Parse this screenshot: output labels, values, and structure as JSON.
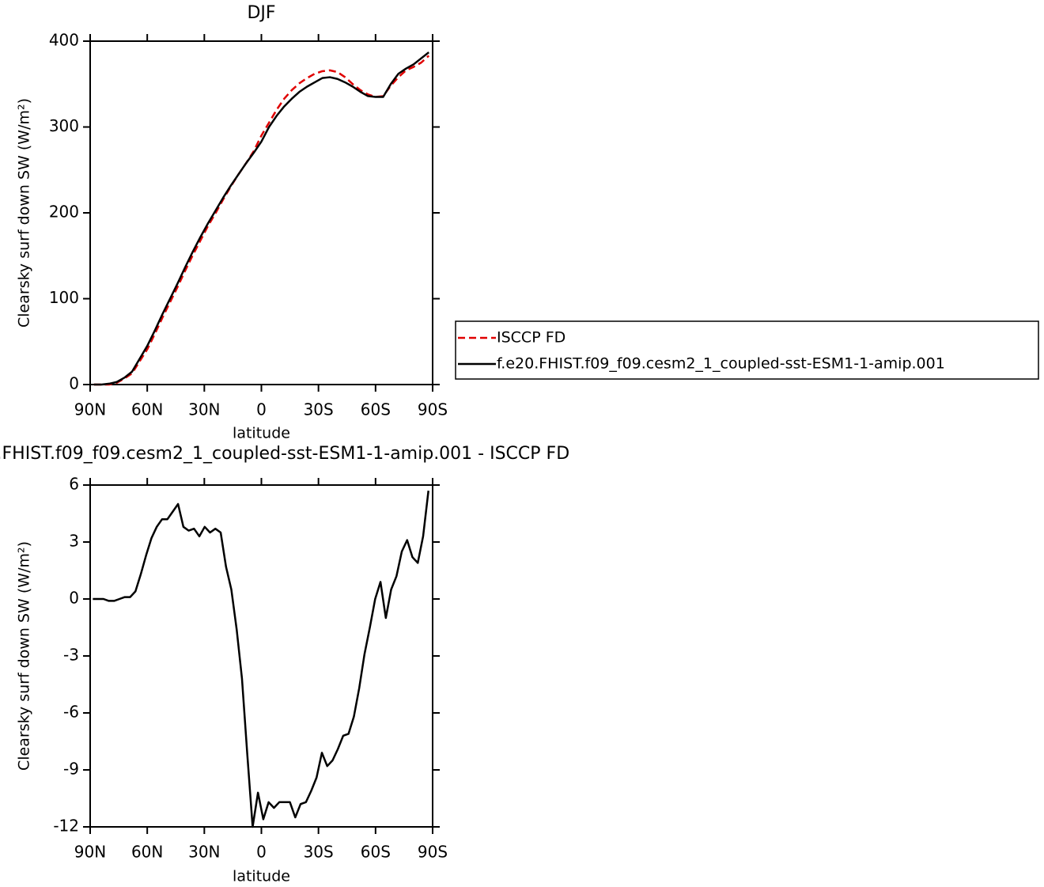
{
  "chart_data": [
    {
      "type": "line",
      "title": "DJF",
      "xlabel": "latitude",
      "ylabel": "Clearsky surf down SW (W/m²)",
      "x": [
        88,
        84,
        80,
        76,
        72,
        68,
        64,
        60,
        56,
        52,
        48,
        44,
        40,
        36,
        32,
        28,
        24,
        20,
        16,
        12,
        8,
        4,
        0,
        -4,
        -8,
        -12,
        -16,
        -20,
        -24,
        -28,
        -32,
        -36,
        -40,
        -44,
        -48,
        -52,
        -56,
        -60,
        -64,
        -68,
        -72,
        -76,
        -80,
        -84,
        -88
      ],
      "series": [
        {
          "name": "ISCCP FD",
          "color": "#e00000",
          "dash": true,
          "values": [
            0,
            0,
            0,
            2,
            7,
            13,
            27,
            41,
            59,
            78,
            96,
            114,
            133,
            151,
            168,
            185,
            200,
            216,
            231,
            245,
            258,
            272,
            290,
            305,
            320,
            333,
            343,
            351,
            357,
            362,
            365,
            366,
            364,
            358,
            350,
            343,
            338,
            335,
            336,
            348,
            358,
            366,
            370,
            375,
            383
          ]
        },
        {
          "name": "f.e20.FHIST.f09_f09.cesm2_1_coupled-sst-ESM1-1-amip.001",
          "color": "#000000",
          "dash": false,
          "values": [
            0,
            0,
            1,
            3,
            8,
            15,
            30,
            45,
            63,
            82,
            100,
            118,
            137,
            155,
            172,
            188,
            203,
            218,
            232,
            245,
            258,
            270,
            283,
            300,
            313,
            324,
            333,
            341,
            347,
            352,
            357,
            358,
            356,
            352,
            347,
            341,
            336,
            335,
            335,
            350,
            362,
            368,
            373,
            380,
            387
          ]
        }
      ],
      "xlim": [
        90,
        -90
      ],
      "xticks": [
        {
          "value": 90,
          "label": "90N"
        },
        {
          "value": 60,
          "label": "60N"
        },
        {
          "value": 30,
          "label": "30N"
        },
        0,
        {
          "value": -30,
          "label": "30S"
        },
        {
          "value": -60,
          "label": "60S"
        },
        {
          "value": -90,
          "label": "90S"
        }
      ],
      "ylim": [
        0,
        400
      ],
      "yticks": [
        0,
        100,
        200,
        300,
        400
      ],
      "legend": "right"
    },
    {
      "type": "line",
      "title": "f.e20.FHIST.f09_f09.cesm2_1_coupled-sst-ESM1-1-amip.001 - ISCCP FD",
      "xlabel": "latitude",
      "ylabel": "Clearsky surf down SW (W/m²)",
      "x": [
        88.6,
        85.8,
        83,
        80.2,
        77.4,
        74.6,
        71.8,
        69,
        66.2,
        63.4,
        60.6,
        57.8,
        55,
        52.2,
        49.4,
        46.6,
        43.8,
        41,
        38.2,
        35.4,
        32.6,
        29.8,
        27,
        24.2,
        21.4,
        18.6,
        15.8,
        13,
        10.2,
        7.4,
        4.6,
        1.8,
        -1,
        -3.8,
        -6.6,
        -9.4,
        -12.2,
        -15,
        -17.8,
        -20.6,
        -23.4,
        -26.2,
        -29,
        -31.8,
        -34.6,
        -37.4,
        -40.2,
        -43,
        -45.8,
        -48.6,
        -51.4,
        -54.2,
        -57,
        -59.8,
        -62.6,
        -65.4,
        -68.2,
        -71,
        -73.8,
        -76.6,
        -79.4,
        -82.2,
        -85,
        -87.8
      ],
      "color": "#000000",
      "values": [
        0,
        0,
        0,
        -0.1,
        -0.1,
        0,
        0.1,
        0.1,
        0.4,
        1.3,
        2.3,
        3.2,
        3.8,
        4.2,
        4.2,
        4.6,
        5.0,
        3.8,
        3.6,
        3.7,
        3.3,
        3.8,
        3.5,
        3.7,
        3.5,
        1.7,
        0.5,
        -1.6,
        -4.2,
        -8.2,
        -12.0,
        -10.2,
        -11.6,
        -10.7,
        -11.0,
        -10.7,
        -10.7,
        -10.7,
        -11.5,
        -10.8,
        -10.7,
        -10.1,
        -9.4,
        -8.1,
        -8.8,
        -8.5,
        -7.9,
        -7.2,
        -7.1,
        -6.2,
        -4.7,
        -2.9,
        -1.5,
        0,
        0.9,
        -1.0,
        0.5,
        1.2,
        2.5,
        3.1,
        2.2,
        1.9,
        3.3,
        5.7
      ],
      "xlim": [
        90,
        -90
      ],
      "xticks": [
        {
          "value": 90,
          "label": "90N"
        },
        {
          "value": 60,
          "label": "60N"
        },
        {
          "value": 30,
          "label": "30N"
        },
        0,
        {
          "value": -30,
          "label": "30S"
        },
        {
          "value": -60,
          "label": "60S"
        },
        {
          "value": -90,
          "label": "90S"
        }
      ],
      "ylim": [
        -12,
        6
      ],
      "yticks": [
        -12,
        -9,
        -6,
        -3,
        0,
        3,
        6
      ]
    }
  ]
}
